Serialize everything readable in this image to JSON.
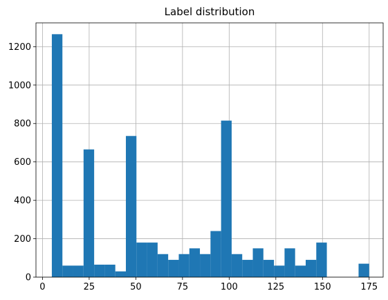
{
  "chart_data": {
    "type": "bar",
    "title": "Label distribution",
    "xlabel": "",
    "ylabel": "",
    "xlim": [
      -3.5,
      182.5
    ],
    "ylim": [
      0,
      1324
    ],
    "grid": true,
    "color": "#1f77b4",
    "bins": [
      {
        "x0": 5.0,
        "x1": 10.67,
        "value": 1265
      },
      {
        "x0": 10.67,
        "x1": 16.33,
        "value": 60
      },
      {
        "x0": 16.33,
        "x1": 22.0,
        "value": 60
      },
      {
        "x0": 22.0,
        "x1": 27.67,
        "value": 665
      },
      {
        "x0": 27.67,
        "x1": 33.33,
        "value": 65
      },
      {
        "x0": 33.33,
        "x1": 39.0,
        "value": 65
      },
      {
        "x0": 39.0,
        "x1": 44.67,
        "value": 30
      },
      {
        "x0": 44.67,
        "x1": 50.33,
        "value": 735
      },
      {
        "x0": 50.33,
        "x1": 56.0,
        "value": 180
      },
      {
        "x0": 56.0,
        "x1": 61.67,
        "value": 180
      },
      {
        "x0": 61.67,
        "x1": 67.33,
        "value": 120
      },
      {
        "x0": 67.33,
        "x1": 73.0,
        "value": 90
      },
      {
        "x0": 73.0,
        "x1": 78.67,
        "value": 120
      },
      {
        "x0": 78.67,
        "x1": 84.33,
        "value": 150
      },
      {
        "x0": 84.33,
        "x1": 90.0,
        "value": 120
      },
      {
        "x0": 90.0,
        "x1": 95.67,
        "value": 240
      },
      {
        "x0": 95.67,
        "x1": 101.33,
        "value": 815
      },
      {
        "x0": 101.33,
        "x1": 107.0,
        "value": 120
      },
      {
        "x0": 107.0,
        "x1": 112.67,
        "value": 90
      },
      {
        "x0": 112.67,
        "x1": 118.33,
        "value": 150
      },
      {
        "x0": 118.33,
        "x1": 124.0,
        "value": 90
      },
      {
        "x0": 124.0,
        "x1": 129.67,
        "value": 60
      },
      {
        "x0": 129.67,
        "x1": 135.33,
        "value": 150
      },
      {
        "x0": 135.33,
        "x1": 141.0,
        "value": 60
      },
      {
        "x0": 141.0,
        "x1": 146.67,
        "value": 90
      },
      {
        "x0": 146.67,
        "x1": 152.33,
        "value": 180
      },
      {
        "x0": 152.33,
        "x1": 158.0,
        "value": 0
      },
      {
        "x0": 158.0,
        "x1": 163.67,
        "value": 0
      },
      {
        "x0": 163.67,
        "x1": 169.33,
        "value": 0
      },
      {
        "x0": 169.33,
        "x1": 175.0,
        "value": 70
      }
    ],
    "x_ticks": [
      0,
      25,
      50,
      75,
      100,
      125,
      150,
      175
    ],
    "x_tick_labels": [
      "0",
      "25",
      "50",
      "75",
      "100",
      "125",
      "150",
      "175"
    ],
    "y_ticks": [
      0,
      200,
      400,
      600,
      800,
      1000,
      1200
    ],
    "y_tick_labels": [
      "0",
      "200",
      "400",
      "600",
      "800",
      "1000",
      "1200"
    ]
  }
}
